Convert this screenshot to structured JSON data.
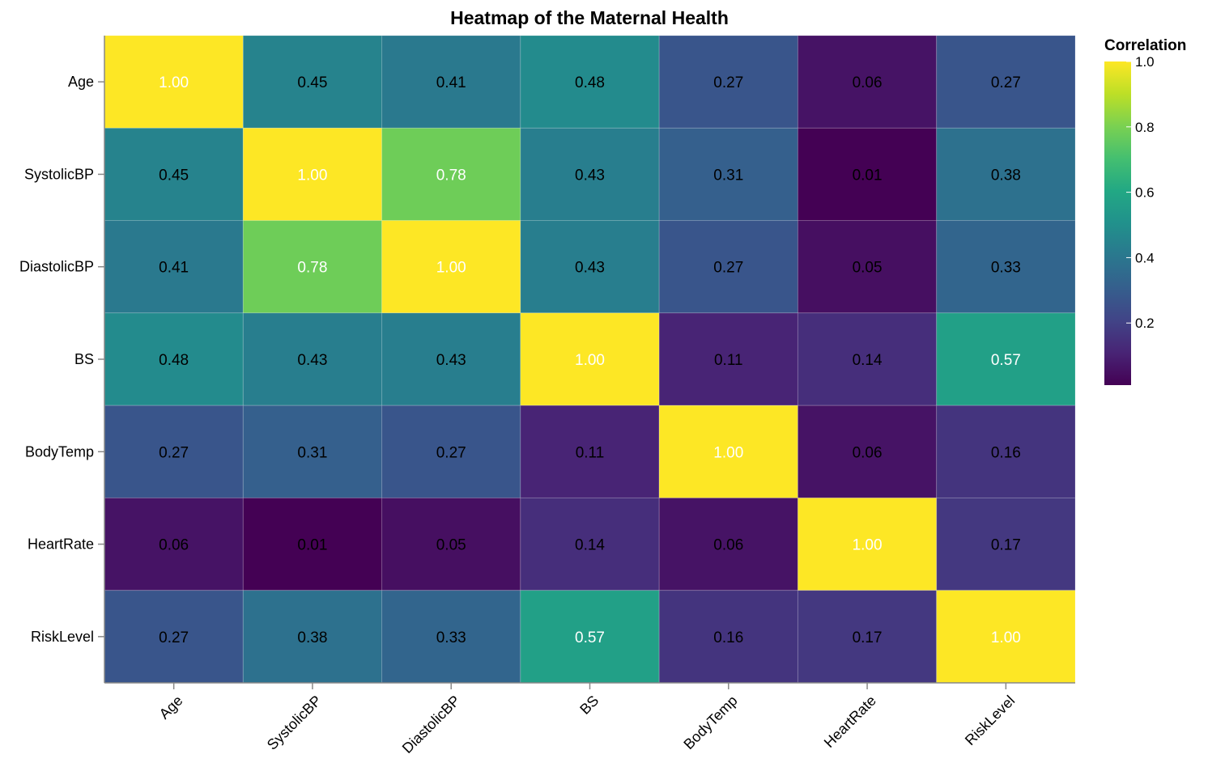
{
  "chart_data": {
    "type": "heatmap",
    "title": "Heatmap of the Maternal Health",
    "categories": [
      "Age",
      "SystolicBP",
      "DiastolicBP",
      "BS",
      "BodyTemp",
      "HeartRate",
      "RiskLevel"
    ],
    "values": [
      [
        1.0,
        0.45,
        0.41,
        0.48,
        0.27,
        0.06,
        0.27
      ],
      [
        0.45,
        1.0,
        0.78,
        0.43,
        0.31,
        0.01,
        0.38
      ],
      [
        0.41,
        0.78,
        1.0,
        0.43,
        0.27,
        0.05,
        0.33
      ],
      [
        0.48,
        0.43,
        0.43,
        1.0,
        0.11,
        0.14,
        0.57
      ],
      [
        0.27,
        0.31,
        0.27,
        0.11,
        1.0,
        0.06,
        0.16
      ],
      [
        0.06,
        0.01,
        0.05,
        0.14,
        0.06,
        1.0,
        0.17
      ],
      [
        0.27,
        0.38,
        0.33,
        0.57,
        0.16,
        0.17,
        1.0
      ]
    ],
    "legend": {
      "title": "Correlation",
      "ticks": [
        "1.0",
        "0.8",
        "0.6",
        "0.4",
        "0.2"
      ],
      "tick_values": [
        1.0,
        0.8,
        0.6,
        0.4,
        0.2
      ],
      "domain": [
        0.01,
        1.0
      ],
      "colormap": "viridis"
    }
  }
}
